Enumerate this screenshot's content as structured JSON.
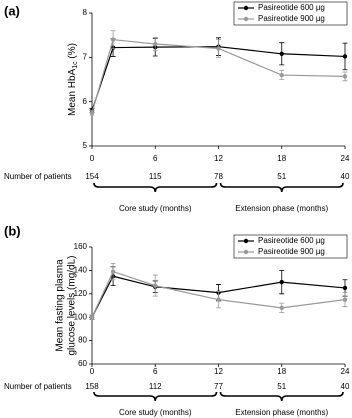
{
  "chart_data": [
    {
      "type": "line",
      "panel_label": "(a)",
      "ylabel": [
        "Mean HbA",
        "1c",
        " (%)"
      ],
      "x": [
        0,
        2,
        6,
        12,
        18,
        24
      ],
      "xlim": [
        0,
        24
      ],
      "xticks": [
        0,
        6,
        12,
        18,
        24
      ],
      "ylim": [
        5,
        8
      ],
      "yticks": [
        5,
        6,
        7,
        8
      ],
      "series": [
        {
          "name": "Pasireotide 600 µg",
          "color": "#000000",
          "values": [
            5.8,
            7.22,
            7.23,
            7.24,
            7.08,
            7.02
          ],
          "errors": [
            0.05,
            0.2,
            0.2,
            0.2,
            0.25,
            0.3
          ]
        },
        {
          "name": "Pasireotide 900 µg",
          "color": "#999999",
          "values": [
            5.75,
            7.4,
            7.3,
            7.2,
            6.6,
            6.57
          ],
          "errors": [
            0.05,
            0.2,
            0.15,
            0.2,
            0.1,
            0.1
          ]
        }
      ],
      "patients_label": "Number of patients",
      "patients": [
        154,
        115,
        78,
        51,
        40
      ],
      "brackets": [
        {
          "label": "Core study (months)",
          "range": [
            0,
            12
          ]
        },
        {
          "label": "Extension phase (months)",
          "range": [
            12,
            24
          ]
        }
      ]
    },
    {
      "type": "line",
      "panel_label": "(b)",
      "ylabel": [
        "Mean fasting plasma",
        "glucose levels (mg/dL)"
      ],
      "x": [
        0,
        2,
        6,
        12,
        18,
        24
      ],
      "xlim": [
        0,
        24
      ],
      "xticks": [
        0,
        6,
        12,
        18,
        24
      ],
      "ylim": [
        60,
        160
      ],
      "yticks": [
        60,
        80,
        100,
        120,
        140,
        160
      ],
      "series": [
        {
          "name": "Pasireotide 600 µg",
          "color": "#000000",
          "values": [
            100,
            135,
            126,
            121,
            130,
            125
          ],
          "errors": [
            2,
            8,
            5,
            7,
            10,
            7
          ]
        },
        {
          "name": "Pasireotide 900 µg",
          "color": "#999999",
          "values": [
            100,
            139,
            127,
            115,
            108,
            115
          ],
          "errors": [
            2,
            7,
            9,
            7,
            4,
            6
          ]
        }
      ],
      "patients_label": "Number of patients",
      "patients": [
        158,
        112,
        77,
        51,
        40
      ],
      "brackets": [
        {
          "label": "Core study (months)",
          "range": [
            0,
            12
          ]
        },
        {
          "label": "Extension phase (months)",
          "range": [
            12,
            24
          ]
        }
      ]
    }
  ]
}
